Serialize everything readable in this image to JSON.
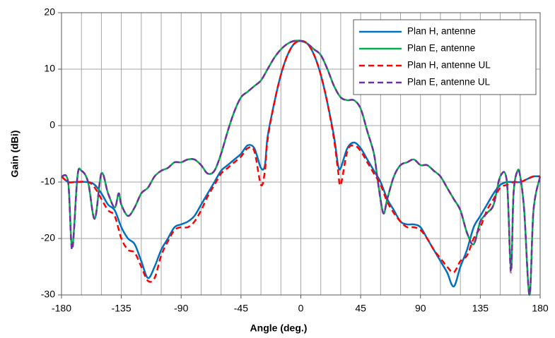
{
  "chart_data": {
    "type": "line",
    "xlabel": "Angle (deg.)",
    "ylabel": "Gain  (dBi)",
    "xlim": [
      -180,
      180
    ],
    "ylim": [
      -30,
      20
    ],
    "xticks": [
      -180,
      -135,
      -90,
      -45,
      0,
      45,
      90,
      135,
      180
    ],
    "yticks": [
      -30,
      -20,
      -10,
      0,
      10,
      20
    ],
    "xgrid": [
      -180,
      -165,
      -150,
      -135,
      -120,
      -105,
      -90,
      -75,
      -60,
      -45,
      -30,
      -15,
      0,
      15,
      30,
      45,
      60,
      75,
      90,
      105,
      120,
      135,
      150,
      165,
      180
    ],
    "grid": true,
    "legend": "upper right",
    "series": [
      {
        "name": "Plan H, antenne",
        "color": "#0070c0",
        "dash": false,
        "x": [
          -180,
          -175,
          -170,
          -160,
          -155,
          -150,
          -145,
          -140,
          -135,
          -130,
          -125,
          -120,
          -115,
          -110,
          -105,
          -100,
          -95,
          -90,
          -85,
          -80,
          -75,
          -70,
          -65,
          -60,
          -55,
          -50,
          -45,
          -40,
          -35,
          -30,
          -27,
          -25,
          -20,
          -15,
          -10,
          -5,
          0,
          5,
          10,
          15,
          20,
          25,
          28,
          30,
          35,
          40,
          45,
          50,
          55,
          60,
          65,
          70,
          75,
          80,
          85,
          90,
          95,
          100,
          105,
          110,
          115,
          120,
          125,
          130,
          135,
          140,
          145,
          150,
          155,
          160,
          165,
          170,
          175,
          180
        ],
        "values": [
          -9,
          -10,
          -10,
          -10,
          -10.5,
          -12,
          -14,
          -15,
          -18,
          -20,
          -21,
          -24,
          -27,
          -25,
          -22,
          -20,
          -18,
          -17.5,
          -17,
          -16,
          -14,
          -12,
          -10,
          -8,
          -7,
          -6,
          -5,
          -3.5,
          -4,
          -7.5,
          -7,
          -2,
          4,
          9,
          12.5,
          14.5,
          15,
          14.5,
          12.5,
          9,
          4,
          -2,
          -7,
          -7.5,
          -4,
          -3,
          -4,
          -6,
          -8,
          -10,
          -13,
          -15,
          -17,
          -17.5,
          -17.5,
          -18,
          -20,
          -22,
          -24,
          -26,
          -28.5,
          -25,
          -22,
          -18,
          -16,
          -14,
          -12,
          -10.5,
          -10,
          -10,
          -10,
          -9.5,
          -9,
          -9
        ]
      },
      {
        "name": "Plan E, antenne",
        "color": "#00b050",
        "dash": false,
        "x": [
          -180,
          -175,
          -172,
          -168,
          -165,
          -160,
          -155,
          -150,
          -145,
          -140,
          -137,
          -135,
          -130,
          -125,
          -120,
          -115,
          -110,
          -105,
          -100,
          -95,
          -90,
          -85,
          -80,
          -75,
          -70,
          -65,
          -60,
          -55,
          -50,
          -45,
          -40,
          -35,
          -30,
          -25,
          -20,
          -15,
          -10,
          -5,
          0,
          5,
          10,
          15,
          20,
          25,
          30,
          35,
          40,
          45,
          50,
          55,
          58,
          62,
          65,
          70,
          75,
          80,
          85,
          90,
          95,
          100,
          105,
          110,
          115,
          120,
          125,
          130,
          135,
          140,
          145,
          150,
          155,
          158,
          160,
          163,
          165,
          168,
          172,
          175,
          180
        ],
        "values": [
          -9,
          -10,
          -21.5,
          -9,
          -8,
          -10,
          -16.5,
          -8.5,
          -12,
          -14.5,
          -12,
          -14,
          -16,
          -14.5,
          -12,
          -11,
          -9,
          -8,
          -7.5,
          -6.5,
          -6.5,
          -6,
          -6,
          -7,
          -8.5,
          -8,
          -5,
          -1,
          2.5,
          5,
          6,
          7,
          8,
          10,
          12,
          13.5,
          14.5,
          15,
          15,
          14.5,
          13.5,
          12.5,
          10,
          7,
          5,
          4.5,
          4.5,
          3,
          -1,
          -5,
          -10,
          -15.5,
          -13,
          -9,
          -7,
          -6.5,
          -6,
          -7,
          -7,
          -8,
          -9,
          -11,
          -13,
          -15,
          -19,
          -21,
          -17,
          -15.5,
          -14,
          -9,
          -10,
          -25.5,
          -12,
          -8,
          -9,
          -15,
          -30,
          -15,
          -9
        ]
      },
      {
        "name": "Plan H, antenne UL",
        "color": "#ff0000",
        "dash": true,
        "x": [
          -180,
          -175,
          -170,
          -160,
          -155,
          -150,
          -145,
          -140,
          -135,
          -130,
          -125,
          -120,
          -115,
          -110,
          -105,
          -100,
          -95,
          -90,
          -85,
          -80,
          -75,
          -70,
          -65,
          -60,
          -55,
          -50,
          -45,
          -40,
          -35,
          -30,
          -27,
          -25,
          -20,
          -15,
          -10,
          -5,
          0,
          5,
          10,
          15,
          20,
          25,
          28,
          30,
          35,
          40,
          45,
          50,
          55,
          60,
          65,
          70,
          75,
          80,
          85,
          90,
          95,
          100,
          105,
          110,
          115,
          120,
          125,
          130,
          135,
          140,
          145,
          150,
          155,
          160,
          165,
          170,
          175,
          180
        ],
        "values": [
          -9,
          -10,
          -10,
          -10,
          -11,
          -13,
          -15,
          -16,
          -20,
          -22,
          -22.5,
          -25,
          -27.5,
          -27,
          -23,
          -20.5,
          -18.5,
          -18,
          -18,
          -17,
          -15,
          -12.5,
          -10.5,
          -8.5,
          -7.5,
          -6.5,
          -5.5,
          -4,
          -4.5,
          -10.5,
          -8,
          -2.5,
          4,
          9,
          12.5,
          14.5,
          15,
          14.5,
          12.5,
          9,
          4,
          -2.5,
          -8,
          -10.5,
          -4.5,
          -3.5,
          -4.5,
          -6.5,
          -8.5,
          -10.5,
          -13.5,
          -15.5,
          -17,
          -18,
          -18,
          -18.5,
          -20,
          -22,
          -23.5,
          -25,
          -26,
          -24,
          -23,
          -20,
          -18,
          -15,
          -13,
          -11,
          -10.5,
          -10,
          -10,
          -9.5,
          -9,
          -9
        ]
      },
      {
        "name": "Plan E, antenne UL",
        "color": "#7030a0",
        "dash": true,
        "x": [
          -180,
          -175,
          -172,
          -168,
          -165,
          -160,
          -155,
          -150,
          -145,
          -140,
          -137,
          -135,
          -130,
          -125,
          -120,
          -115,
          -110,
          -105,
          -100,
          -95,
          -90,
          -85,
          -80,
          -75,
          -70,
          -65,
          -60,
          -55,
          -50,
          -45,
          -40,
          -35,
          -30,
          -25,
          -20,
          -15,
          -10,
          -5,
          0,
          5,
          10,
          15,
          20,
          25,
          30,
          35,
          40,
          45,
          50,
          55,
          58,
          62,
          65,
          70,
          75,
          80,
          85,
          90,
          95,
          100,
          105,
          110,
          115,
          120,
          125,
          130,
          135,
          140,
          145,
          150,
          155,
          158,
          160,
          163,
          165,
          168,
          172,
          175,
          180
        ],
        "values": [
          -9,
          -10,
          -22,
          -9,
          -8,
          -10,
          -16.5,
          -8.5,
          -12,
          -14.5,
          -12,
          -14,
          -16,
          -14.5,
          -12,
          -11,
          -9,
          -8,
          -7.5,
          -6.5,
          -6.5,
          -6,
          -6,
          -7,
          -8.5,
          -8,
          -5,
          -1,
          2.5,
          5,
          6,
          7,
          8,
          10,
          12,
          13.5,
          14.5,
          15,
          15,
          14.5,
          13.5,
          12.5,
          10,
          7,
          5,
          4.5,
          4.5,
          3,
          -1,
          -5,
          -10,
          -15.5,
          -13,
          -9,
          -7,
          -6.5,
          -6,
          -7,
          -7,
          -8,
          -9,
          -11,
          -13,
          -15,
          -19,
          -21,
          -17,
          -15.5,
          -14,
          -9,
          -10,
          -26,
          -12,
          -8,
          -9,
          -15,
          -30,
          -15,
          -9
        ]
      }
    ]
  }
}
